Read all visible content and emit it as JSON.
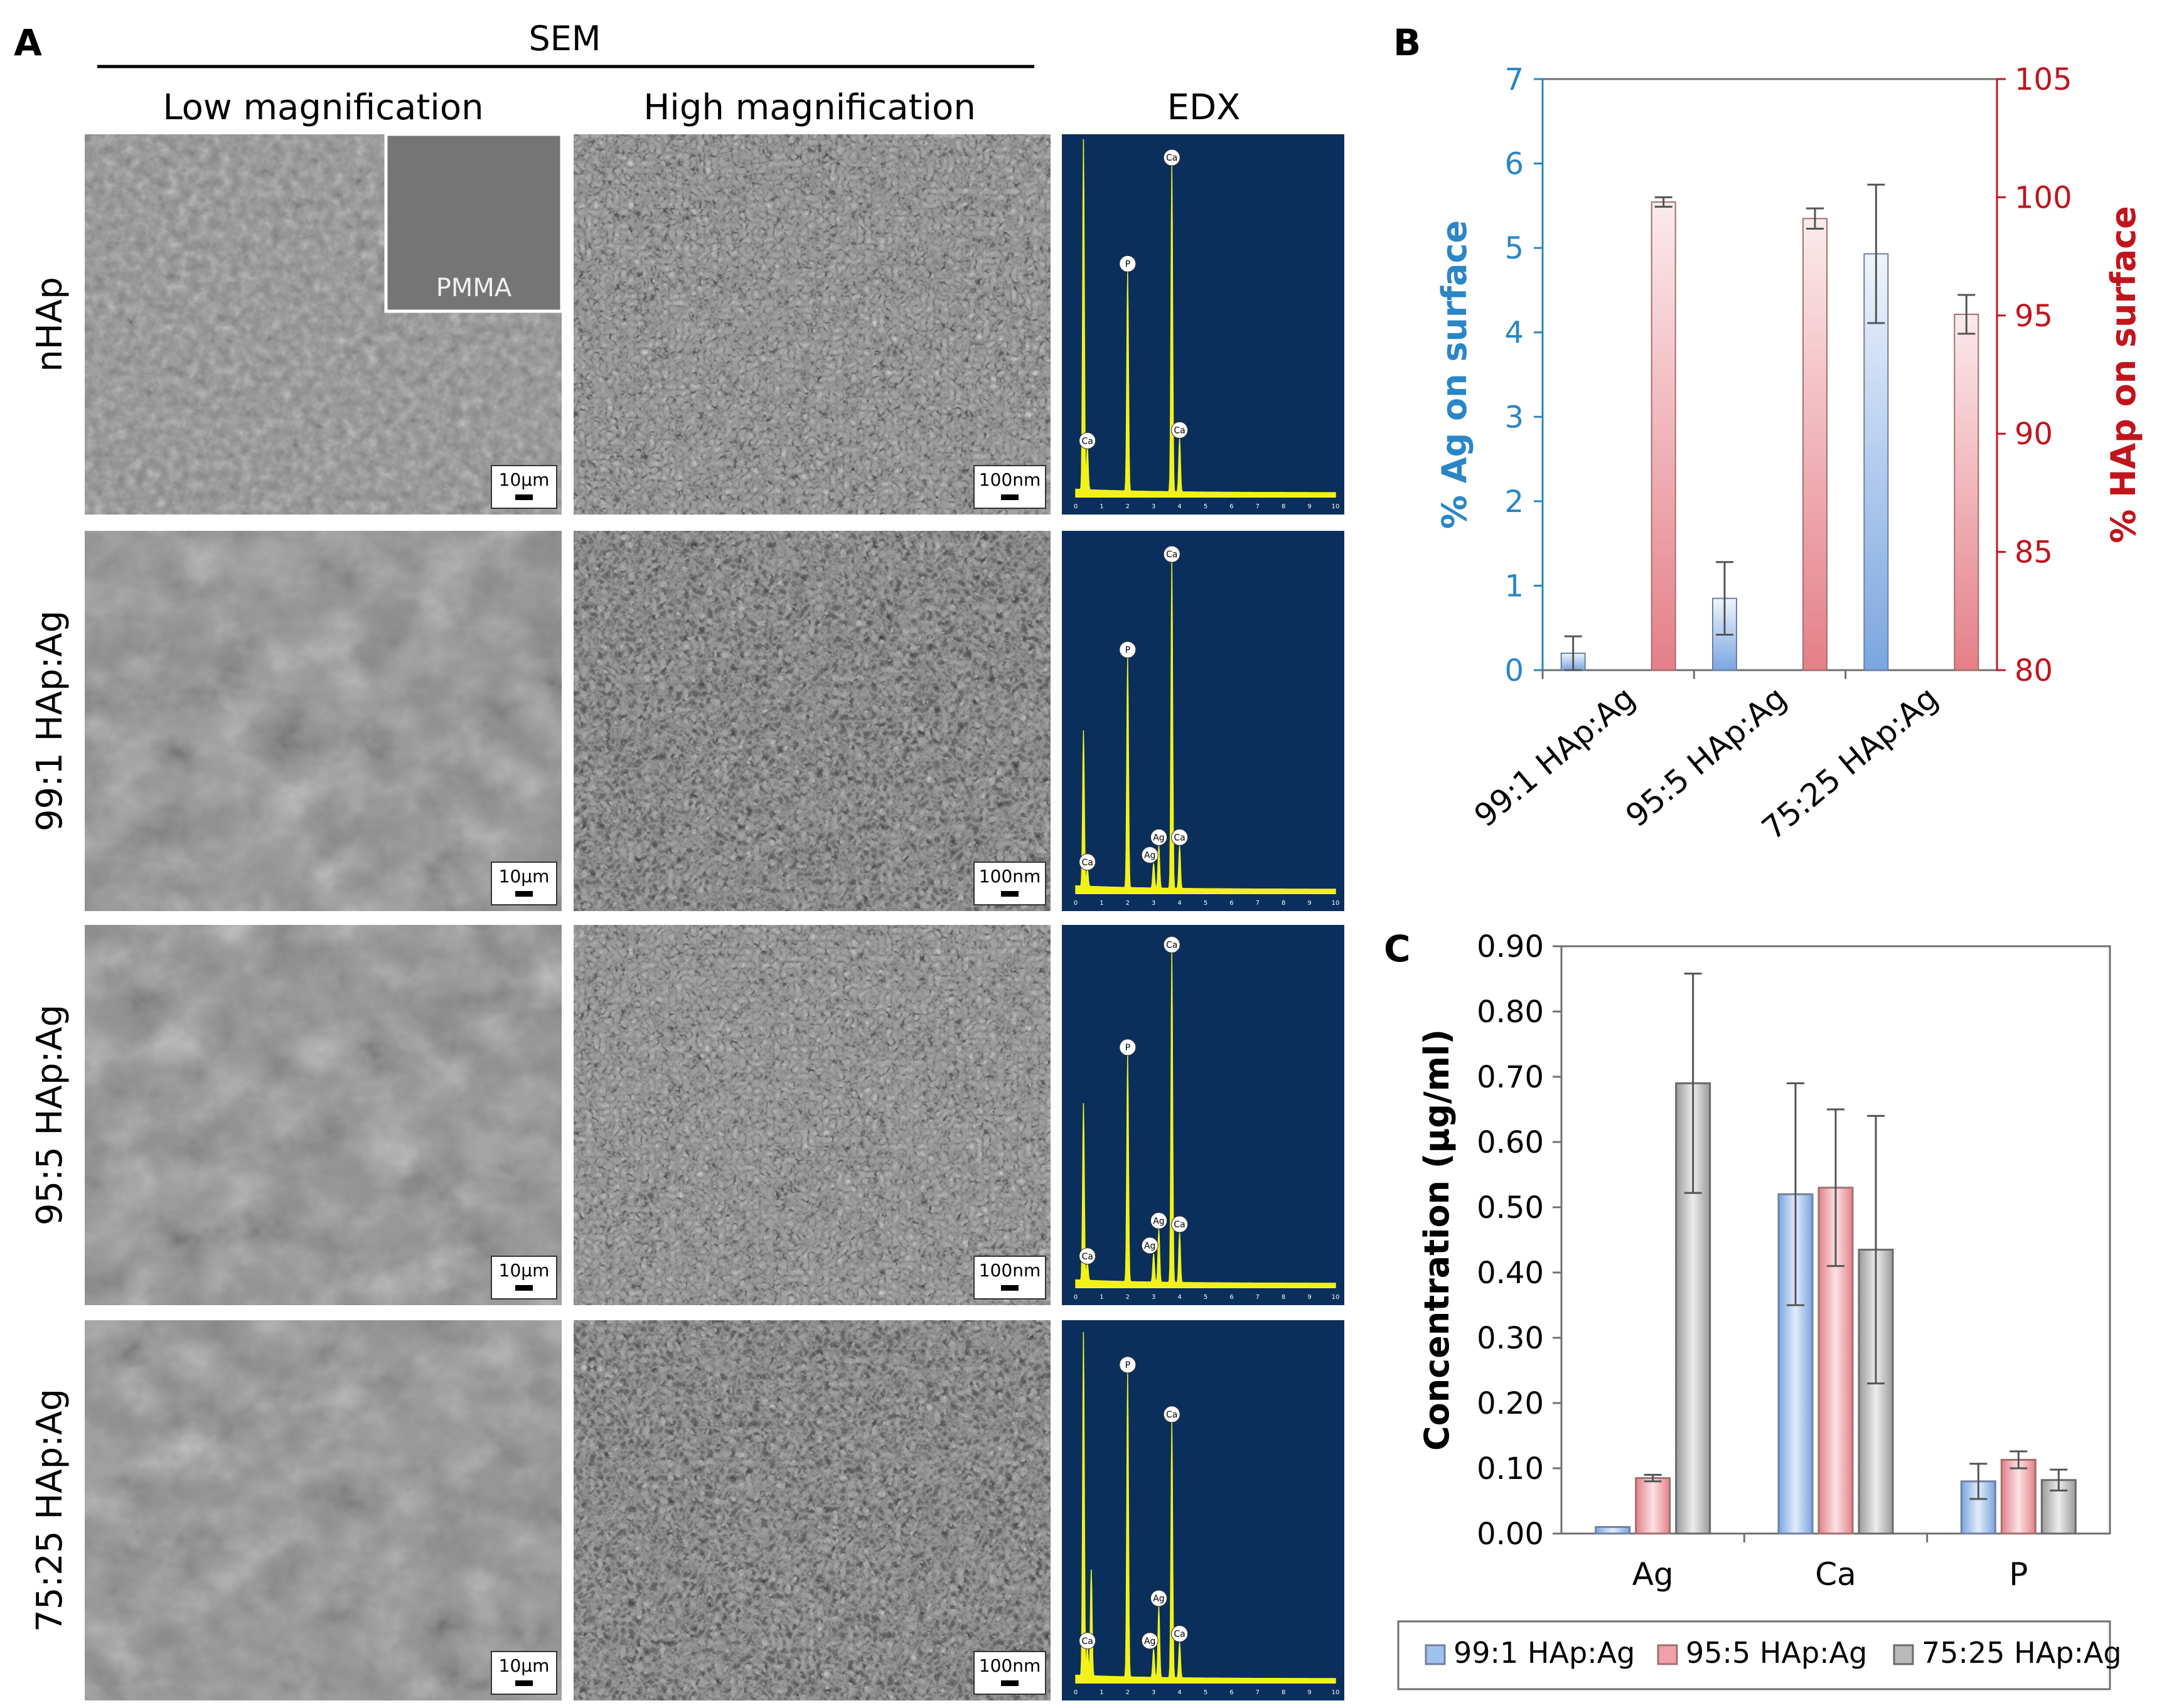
{
  "panel_a": {
    "label": "A",
    "group_header": "SEM",
    "col_headers": [
      "Low magnification",
      "High magnification",
      "EDX"
    ],
    "row_labels": [
      "nHAp",
      "99:1 HAp:Ag",
      "95:5 HAp:Ag",
      "75:25 HAp:Ag"
    ],
    "inset_label": "PMMA",
    "scalebar_low": "10μm",
    "scalebar_high": "100nm",
    "edx_peak_labels": {
      "P": "P",
      "Ca": "Ca",
      "Ag": "Ag"
    },
    "edx_tick_labels": [
      "0",
      "1",
      "2",
      "3",
      "4",
      "5",
      "6",
      "7",
      "8",
      "9",
      "10"
    ],
    "colors": {
      "sem_base": "#8c8c8c",
      "edx_bg": "#0a2f5c",
      "edx_trace": "#f2f21a"
    }
  },
  "chart_data": [
    {
      "panel": "B",
      "type": "bar",
      "categories": [
        "99:1 HAp:Ag",
        "95:5 HAp:Ag",
        "75:25 HAp:Ag"
      ],
      "series": [
        {
          "axis": "left",
          "values": [
            0.2,
            0.85,
            4.93
          ],
          "errors": [
            0.2,
            0.43,
            0.82
          ],
          "color": "#7aa6e0"
        },
        {
          "axis": "right",
          "values": [
            99.8,
            99.1,
            95.05
          ],
          "errors": [
            0.2,
            0.43,
            0.82
          ],
          "color": "#e57f87"
        }
      ],
      "ylabel_left": "% Ag on surface",
      "ylabel_right": "% HAp on surface",
      "ylim_left": [
        0,
        7
      ],
      "ylim_right": [
        80,
        105
      ],
      "yticks_left": [
        "0",
        "1",
        "2",
        "3",
        "4",
        "5",
        "6",
        "7"
      ],
      "yticks_right": [
        "80",
        "85",
        "90",
        "95",
        "100",
        "105"
      ],
      "left_axis_color": "#2a86c6",
      "right_axis_color": "#c0151d"
    },
    {
      "panel": "C",
      "type": "bar",
      "categories": [
        "Ag",
        "Ca",
        "P"
      ],
      "series": [
        {
          "name": "99:1 HAp:Ag",
          "values": [
            0.01,
            0.52,
            0.08
          ],
          "errors": [
            0.0,
            0.17,
            0.027
          ],
          "color": "#9fc1ee"
        },
        {
          "name": "95:5 HAp:Ag",
          "values": [
            0.085,
            0.53,
            0.113
          ],
          "errors": [
            0.005,
            0.12,
            0.013
          ],
          "color": "#f0a0a6"
        },
        {
          "name": "75:25 HAp:Ag",
          "values": [
            0.69,
            0.435,
            0.082
          ],
          "errors": [
            0.168,
            0.205,
            0.016
          ],
          "color": "#b9b9b9"
        }
      ],
      "ylabel": "Concentration (µg/ml)",
      "ylim": [
        0,
        0.9
      ],
      "yticks": [
        "0.00",
        "0.10",
        "0.20",
        "0.30",
        "0.40",
        "0.50",
        "0.60",
        "0.70",
        "0.80",
        "0.90"
      ],
      "legend_position": "bottom"
    }
  ],
  "panel_b": {
    "label": "B"
  },
  "panel_c": {
    "label": "C"
  }
}
